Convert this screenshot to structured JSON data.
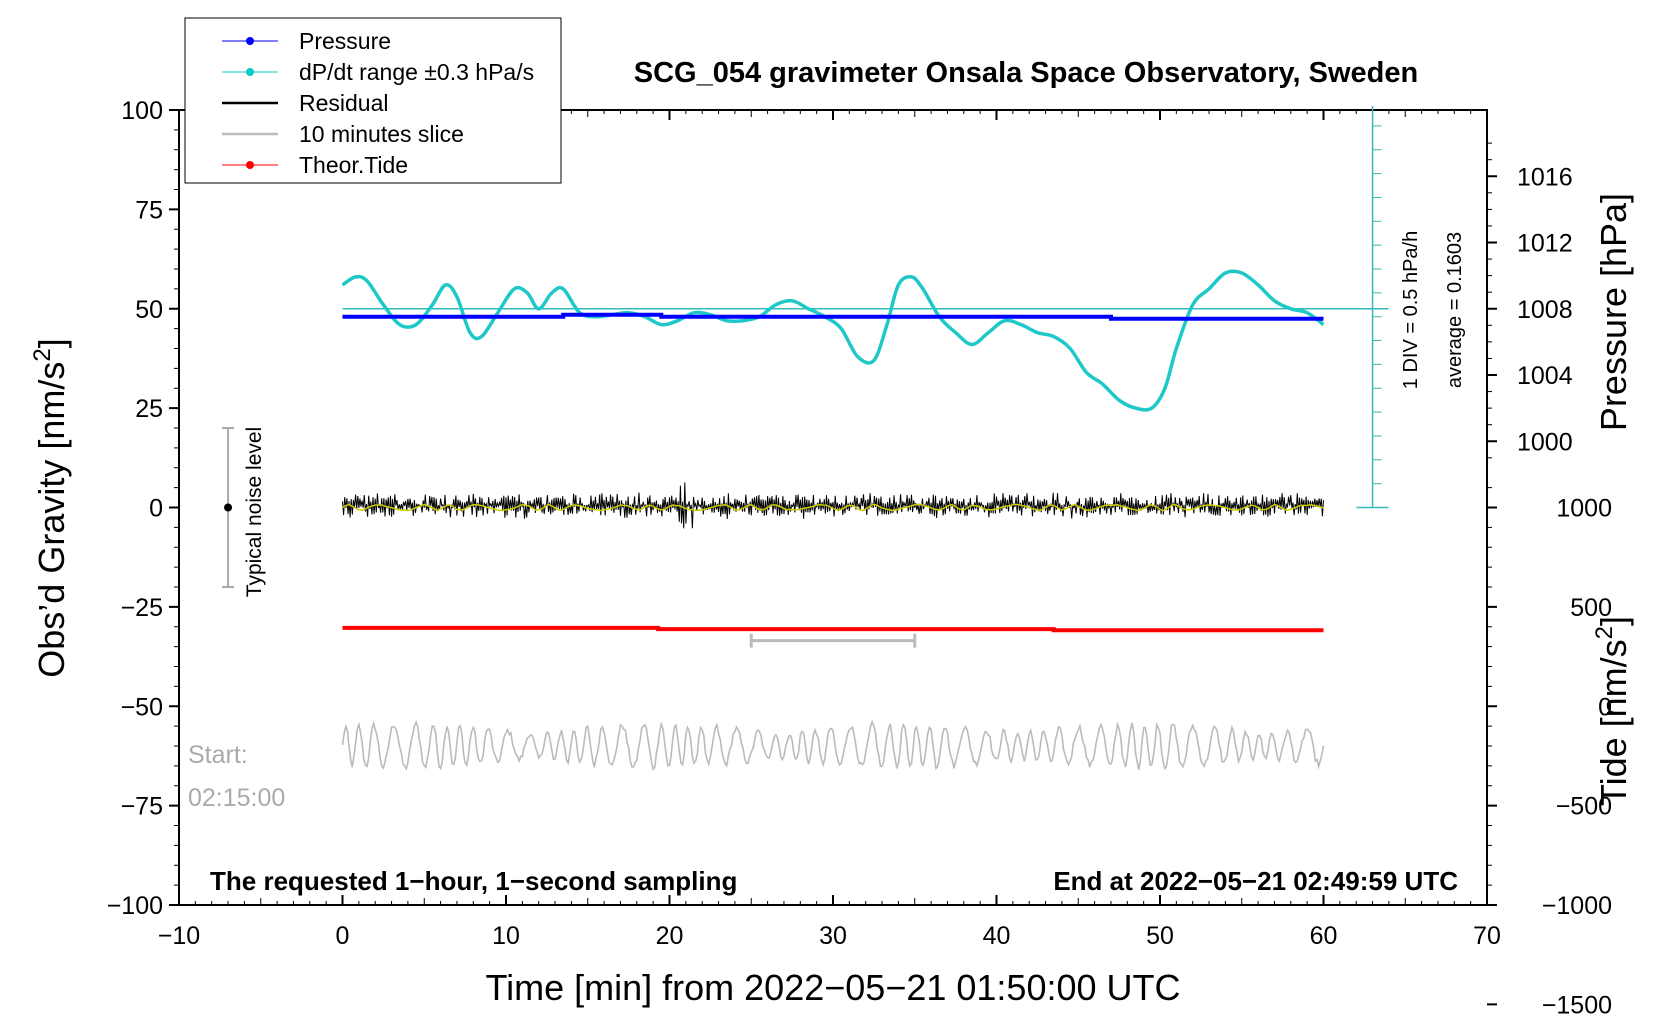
{
  "chart_data": {
    "type": "line",
    "title": "SCG_054 gravimeter Onsala Space Observatory, Sweden",
    "xlabel": "Time [min] from 2022−05−21 01:50:00 UTC",
    "ylabel_left": "Obs’d Gravity [nm/s",
    "ylabel_left_sup": "2",
    "ylabel_left_end": "]",
    "ylabel_right_pressure": "Pressure [hPa]",
    "ylabel_right_tide": "Tide [nm/s",
    "ylabel_right_tide_sup": "2",
    "ylabel_right_tide_end": "]",
    "xlim": [
      -10,
      70
    ],
    "ylim": [
      -100,
      100
    ],
    "x_ticks": [
      -10,
      0,
      10,
      20,
      30,
      40,
      50,
      60,
      70
    ],
    "x_tick_labels": [
      "−10",
      "0",
      "10",
      "20",
      "30",
      "40",
      "50",
      "60",
      "70"
    ],
    "y_ticks": [
      -100,
      -75,
      -50,
      -25,
      0,
      25,
      50,
      75,
      100
    ],
    "y_tick_labels": [
      "−100",
      "−75",
      "−50",
      "−25",
      "0",
      "25",
      "50",
      "75",
      "100"
    ],
    "pressure_axis": {
      "ticks": [
        1000,
        1004,
        1008,
        1012,
        1016
      ],
      "tick_labels": [
        "1000",
        "1004",
        "1008",
        "1012",
        "1016"
      ],
      "gravity_equiv_slope": 6.0,
      "gravity_equiv_at_1008": 50
    },
    "tide_axis": {
      "ticks": [
        -1500,
        -1000,
        -500,
        0,
        500,
        1000
      ],
      "tick_labels": [
        "−1500",
        "−1000",
        "−500",
        "0",
        "500",
        "1000"
      ],
      "gravity_equiv_at_0": -50,
      "gravity_per_unit": 0.06
    },
    "legend": [
      {
        "label": "Pressure",
        "color": "#0000ff",
        "marker": true
      },
      {
        "label": "dP/dt range ±0.3 hPa/s",
        "color": "#00cccc",
        "marker": true
      },
      {
        "label": "Residual",
        "color": "#000000",
        "marker": false
      },
      {
        "label": "10 minutes slice",
        "color": "#bbbbbb",
        "marker": false
      },
      {
        "label": "Theor.Tide",
        "color": "#ff0000",
        "marker": true
      }
    ],
    "series": [
      {
        "name": "Pressure",
        "color": "#0000ff",
        "x": [
          0,
          13.5,
          13.5,
          19.5,
          19.5,
          47,
          47,
          60
        ],
        "values": [
          48,
          48,
          48.5,
          48.5,
          48,
          48,
          47.5,
          47.5
        ]
      },
      {
        "name": "dP/dt range",
        "color": "#1ec8c8",
        "x": [
          0,
          0.8,
          1.5,
          2.5,
          3.5,
          4.5,
          5.5,
          6.3,
          7,
          7.8,
          8.5,
          9.5,
          10.5,
          11.3,
          12,
          12.8,
          13.5,
          14.5,
          15.5,
          16.5,
          17.5,
          18.5,
          19.5,
          20.5,
          21.5,
          22.5,
          23.5,
          24.5,
          25.5,
          26.5,
          27.5,
          28.5,
          29.5,
          30.5,
          31.5,
          32.5,
          33.3,
          34,
          34.8,
          35.5,
          36.5,
          37.5,
          38.5,
          39.5,
          40.5,
          41.5,
          42.5,
          43.5,
          44.5,
          45.5,
          46.5,
          47.5,
          48.5,
          49.5,
          50.3,
          51,
          52,
          53,
          54,
          55,
          56,
          57,
          58,
          59,
          60
        ],
        "values": [
          56,
          58,
          57,
          51,
          46,
          46,
          51,
          56,
          53,
          44,
          43,
          49,
          55,
          54,
          50,
          54,
          55,
          49,
          48,
          48.5,
          49,
          48,
          46,
          47,
          49,
          48.5,
          47,
          47,
          48,
          51,
          52,
          50,
          48,
          45,
          38,
          37,
          46,
          56,
          58,
          55,
          48,
          44,
          41,
          44,
          47,
          46,
          44,
          43,
          40,
          34,
          31,
          27,
          25,
          25,
          30,
          40,
          51,
          55,
          59,
          59,
          56,
          52,
          50,
          49,
          46
        ]
      },
      {
        "name": "Residual",
        "color": "#000000",
        "amplitude": 3.5,
        "x_range": [
          0,
          60
        ]
      },
      {
        "name": "Residual smoothed",
        "color": "#cccc00",
        "amplitude": 0.8,
        "x_range": [
          0,
          60
        ]
      },
      {
        "name": "10 minutes slice",
        "color": "#bbbbbb",
        "center": -60,
        "amplitude": 5.5,
        "x_range": [
          0,
          60
        ]
      },
      {
        "name": "Theor.Tide",
        "color": "#ff0000",
        "x": [
          0,
          19.3,
          19.3,
          43.5,
          43.5,
          60
        ],
        "values": [
          -30.3,
          -30.3,
          -30.6,
          -30.6,
          -30.9,
          -30.9
        ]
      }
    ],
    "slice_bar": {
      "x_start": 25,
      "x_end": 35,
      "y": -33.5,
      "color": "#bbbbbb"
    },
    "noise_bar": {
      "x": -7,
      "center": 0,
      "half_range": 20,
      "label": "Typical noise level"
    },
    "pressure_scale": {
      "x": 63,
      "y_top": 101,
      "y_bottom": 0,
      "y_ref": 50,
      "tick_step": 6,
      "label_div": "1 DIV = 0.5 hPa/h",
      "label_avg": "average = 0.1603"
    },
    "annotations": {
      "start_label": "Start:",
      "start_time": "02:15:00",
      "bottom_left": "The requested 1−hour, 1−second sampling",
      "bottom_right": "End at 2022−05−21 02:49:59 UTC"
    },
    "grid": false,
    "legend_position": "top-left"
  }
}
